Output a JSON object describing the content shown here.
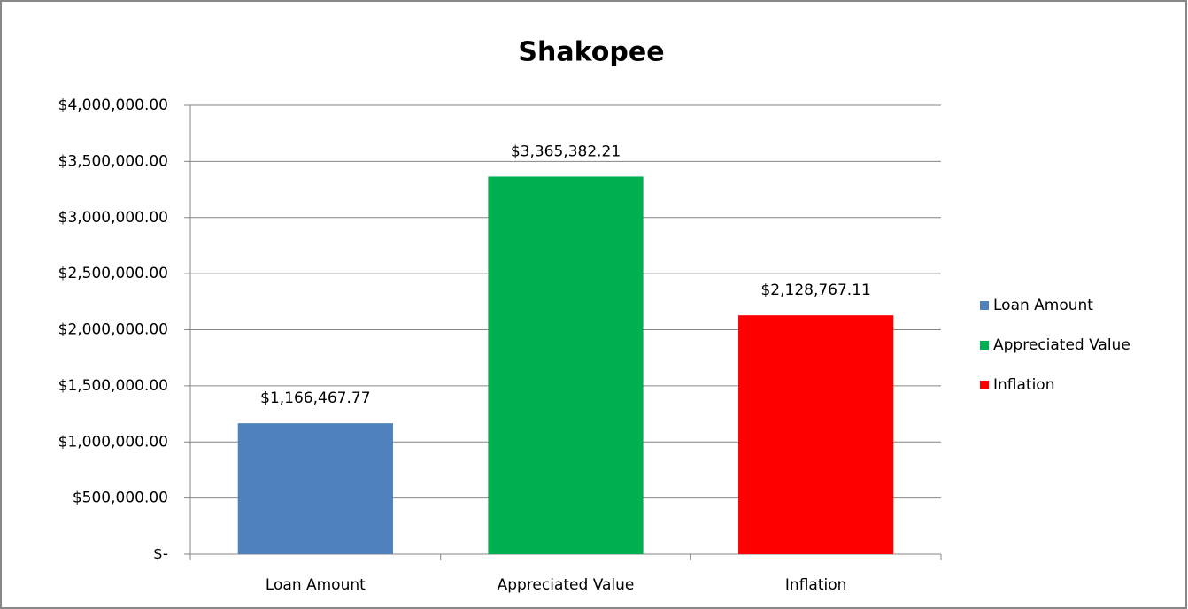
{
  "chart_data": {
    "type": "bar",
    "title": "Shakopee",
    "categories": [
      "Loan Amount",
      "Appreciated Value",
      "Inflation"
    ],
    "values": [
      1166467.77,
      3365382.21,
      2128767.11
    ],
    "value_labels": [
      "$1,166,467.77",
      "$3,365,382.21",
      "$2,128,767.11"
    ],
    "colors": [
      "#4f81bd",
      "#00b050",
      "#ff0000"
    ],
    "ylim": [
      0,
      4000000
    ],
    "yticks": [
      {
        "value": 0,
        "label": "$-"
      },
      {
        "value": 500000,
        "label": "$500,000.00"
      },
      {
        "value": 1000000,
        "label": "$1,000,000.00"
      },
      {
        "value": 1500000,
        "label": "$1,500,000.00"
      },
      {
        "value": 2000000,
        "label": "$2,000,000.00"
      },
      {
        "value": 2500000,
        "label": "$2,500,000.00"
      },
      {
        "value": 3000000,
        "label": "$3,000,000.00"
      },
      {
        "value": 3500000,
        "label": "$3,500,000.00"
      },
      {
        "value": 4000000,
        "label": "$4,000,000.00"
      }
    ],
    "grid": true,
    "legend": "right"
  }
}
